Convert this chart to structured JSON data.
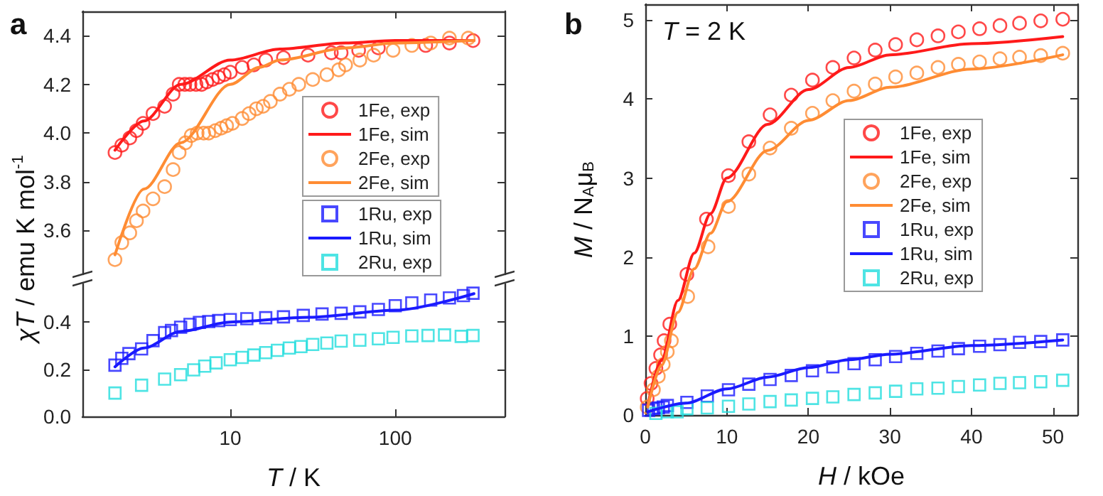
{
  "chart_data": [
    {
      "type": "scatter",
      "title": "a",
      "ylabel": "χT / emu K mol$^{-1}$",
      "log": "x",
      "xlim": [
        1.27,
        460
      ],
      "xticks": [
        10,
        100
      ],
      "ylim": [
        3.42,
        4.5
      ],
      "yticks": [
        3.6,
        3.8,
        {
          "value": 4,
          "label": "4.0"
        },
        4.2,
        4.4
      ],
      "tick_labels": "y",
      "grid": false,
      "legend": "right",
      "series": [
        {
          "name": "1Fe, exp",
          "marker": "circle",
          "color": "#ff1a1a",
          "x": [
            2,
            2.2,
            2.46,
            2.7,
            2.96,
            3.4,
            4,
            4.5,
            4.9,
            5.3,
            5.7,
            6.2,
            6.7,
            7.2,
            7.8,
            8.5,
            9.2,
            10,
            11.8,
            13.9,
            16.4,
            21,
            29.6,
            41,
            47,
            60,
            79,
            153,
            213,
            296
          ],
          "values": [
            3.92,
            3.95,
            3.98,
            4.01,
            4.04,
            4.08,
            4.11,
            4.16,
            4.2,
            4.2,
            4.2,
            4.2,
            4.2,
            4.21,
            4.22,
            4.23,
            4.24,
            4.25,
            4.27,
            4.28,
            4.3,
            4.31,
            4.32,
            4.33,
            4.33,
            4.34,
            4.35,
            4.36,
            4.37,
            4.38
          ]
        },
        {
          "name": "1Fe, sim",
          "type": "line",
          "marker": "none",
          "color": "#ff1a1a",
          "x": [
            2,
            3,
            5,
            10,
            20,
            50,
            100,
            300
          ],
          "values": [
            3.93,
            4.05,
            4.2,
            4.3,
            4.345,
            4.37,
            4.38,
            4.38
          ]
        },
        {
          "name": "2Fe, exp",
          "marker": "circle",
          "color": "#ff8c33",
          "x": [
            2,
            2.2,
            2.46,
            2.7,
            2.96,
            3.4,
            4,
            4.5,
            4.9,
            5.35,
            5.8,
            6.3,
            6.9,
            7.4,
            8.1,
            8.8,
            9.5,
            10.3,
            11.8,
            13,
            14.4,
            15.8,
            17.5,
            20,
            22.8,
            26,
            31.6,
            38.5,
            45.4,
            50,
            61,
            74,
            97,
            126,
            164,
            213,
            277
          ],
          "values": [
            3.48,
            3.55,
            3.59,
            3.64,
            3.68,
            3.73,
            3.78,
            3.85,
            3.92,
            3.96,
            3.99,
            4.0,
            4.0,
            4.0,
            4.01,
            4.02,
            4.03,
            4.04,
            4.06,
            4.08,
            4.1,
            4.11,
            4.13,
            4.16,
            4.18,
            4.2,
            4.22,
            4.24,
            4.26,
            4.28,
            4.3,
            4.32,
            4.34,
            4.36,
            4.37,
            4.39,
            4.39
          ]
        },
        {
          "name": "2Fe, sim",
          "type": "line",
          "marker": "none",
          "color": "#ff8c33",
          "x": [
            2,
            3,
            5,
            10,
            15,
            20,
            50,
            100,
            300
          ],
          "values": [
            3.5,
            3.77,
            3.96,
            4.2,
            4.27,
            4.3,
            4.35,
            4.37,
            4.38
          ]
        }
      ]
    },
    {
      "type": "scatter",
      "xlabel": "T / K",
      "log": "x",
      "xlim": [
        1.27,
        460
      ],
      "xticks": [
        10,
        100
      ],
      "ylim": [
        0,
        0.56
      ],
      "yticks": [
        {
          "value": 0,
          "label": "0.0"
        },
        0.2,
        0.4
      ],
      "grid": false,
      "legend": "right",
      "series": [
        {
          "name": "1Ru, exp",
          "marker": "square",
          "color": "#1a1aff",
          "x": [
            2,
            2.2,
            2.43,
            2.9,
            3.4,
            4,
            4.4,
            5,
            5.7,
            6.5,
            7.4,
            8.5,
            10,
            12.6,
            16.4,
            21,
            27.7,
            36,
            47,
            61,
            79,
            100,
            126,
            164,
            213,
            259,
            296
          ],
          "values": [
            0.217,
            0.246,
            0.266,
            0.286,
            0.321,
            0.355,
            0.364,
            0.378,
            0.39,
            0.398,
            0.402,
            0.406,
            0.41,
            0.414,
            0.418,
            0.422,
            0.428,
            0.434,
            0.437,
            0.443,
            0.453,
            0.469,
            0.481,
            0.493,
            0.502,
            0.512,
            0.522
          ]
        },
        {
          "name": "1Ru, sim",
          "type": "line",
          "marker": "none",
          "color": "#1a1aff",
          "x": [
            2,
            3,
            5,
            10,
            30,
            100,
            300
          ],
          "values": [
            0.21,
            0.29,
            0.36,
            0.4,
            0.42,
            0.45,
            0.52
          ]
        },
        {
          "name": "2Ru, exp",
          "marker": "square",
          "color": "#22dddd",
          "x": [
            2,
            2.9,
            4,
            5,
            6,
            7,
            8.2,
            10,
            11.8,
            13.9,
            16.4,
            19.3,
            22.8,
            26.8,
            31.6,
            38.5,
            47,
            61,
            79,
            97,
            126,
            158,
            199,
            251,
            296
          ],
          "values": [
            0.099,
            0.132,
            0.158,
            0.177,
            0.197,
            0.213,
            0.227,
            0.24,
            0.25,
            0.26,
            0.27,
            0.28,
            0.29,
            0.296,
            0.305,
            0.311,
            0.319,
            0.323,
            0.329,
            0.335,
            0.341,
            0.343,
            0.345,
            0.339,
            0.343
          ]
        }
      ]
    },
    {
      "type": "scatter",
      "title": "b",
      "xlabel": "H / kOe",
      "ylabel": "M / N$_{A}$μ$_{B}$",
      "annotations": [
        "T = 2 K"
      ],
      "xlim": [
        0,
        53
      ],
      "xticks": [
        0,
        10,
        20,
        30,
        40,
        50
      ],
      "ylim": [
        0,
        5.2
      ],
      "yticks": [
        0,
        1,
        2,
        3,
        4,
        5
      ],
      "grid": false,
      "legend": "right",
      "series": [
        {
          "name": "1Fe, exp",
          "marker": "circle",
          "color": "#ff1a1a",
          "x": [
            0.23,
            0.7,
            1.3,
            1.87,
            2.3,
            3,
            5.1,
            7.5,
            10.2,
            12.7,
            15.3,
            17.9,
            20.5,
            23,
            25.6,
            28.2,
            30.7,
            33.3,
            35.9,
            38.4,
            41,
            43.5,
            45.9,
            48.5,
            51.2
          ],
          "values": [
            0.21,
            0.4,
            0.59,
            0.76,
            0.94,
            1.15,
            1.78,
            2.48,
            3.03,
            3.46,
            3.8,
            4.05,
            4.24,
            4.4,
            4.52,
            4.62,
            4.69,
            4.75,
            4.8,
            4.85,
            4.89,
            4.93,
            4.96,
            4.99,
            5.01
          ]
        },
        {
          "name": "1Fe, sim",
          "type": "line",
          "marker": "none",
          "color": "#ff1a1a",
          "x": [
            0.3,
            2,
            4,
            6,
            8,
            10,
            15,
            20,
            25,
            30,
            40,
            51.2
          ],
          "values": [
            0.12,
            0.7,
            1.45,
            2.05,
            2.55,
            3.0,
            3.68,
            4.12,
            4.4,
            4.56,
            4.7,
            4.79
          ]
        },
        {
          "name": "2Fe, exp",
          "marker": "circle",
          "color": "#ff8c33",
          "x": [
            0.23,
            1,
            1.6,
            2.2,
            2.7,
            3.2,
            5.2,
            7.7,
            10.2,
            12.7,
            15.3,
            17.9,
            20.5,
            23,
            25.6,
            28.2,
            30.7,
            33.3,
            35.9,
            38.4,
            41,
            43.5,
            45.9,
            48.5,
            51.2
          ],
          "values": [
            0.1,
            0.32,
            0.49,
            0.64,
            0.8,
            0.94,
            1.5,
            2.13,
            2.64,
            3.05,
            3.38,
            3.63,
            3.82,
            3.98,
            4.1,
            4.19,
            4.28,
            4.33,
            4.4,
            4.44,
            4.47,
            4.51,
            4.53,
            4.55,
            4.58
          ]
        },
        {
          "name": "2Fe, sim",
          "type": "line",
          "marker": "none",
          "color": "#ff8c33",
          "x": [
            0.3,
            2,
            4,
            6,
            8,
            10,
            15,
            20,
            25,
            30,
            40,
            51.2
          ],
          "values": [
            0.1,
            0.63,
            1.3,
            1.85,
            2.3,
            2.7,
            3.35,
            3.73,
            3.98,
            4.15,
            4.38,
            4.56
          ]
        },
        {
          "name": "1Ru, exp",
          "marker": "square",
          "color": "#1a1aff",
          "x": [
            0.4,
            1,
            1.6,
            2.2,
            2.7,
            5.1,
            7.6,
            10.2,
            12.7,
            15.3,
            17.9,
            20.5,
            23,
            25.6,
            28.2,
            30.7,
            33.3,
            35.9,
            38.4,
            41,
            43.5,
            45.9,
            48.5,
            51.2
          ],
          "values": [
            0.06,
            0.08,
            0.09,
            0.1,
            0.12,
            0.16,
            0.24,
            0.32,
            0.39,
            0.45,
            0.5,
            0.56,
            0.61,
            0.65,
            0.7,
            0.74,
            0.78,
            0.81,
            0.84,
            0.87,
            0.89,
            0.92,
            0.93,
            0.95
          ]
        },
        {
          "name": "1Ru, sim",
          "type": "line",
          "marker": "none",
          "color": "#1a1aff",
          "x": [
            0.3,
            5,
            10,
            15,
            20,
            25,
            30,
            40,
            51.2
          ],
          "values": [
            0.04,
            0.15,
            0.33,
            0.48,
            0.6,
            0.7,
            0.77,
            0.88,
            0.95
          ]
        },
        {
          "name": "2Ru, exp",
          "marker": "square",
          "color": "#22dddd",
          "x": [
            1.3,
            2.7,
            3.9,
            5.1,
            7.6,
            10.2,
            12.7,
            15.3,
            17.9,
            20.5,
            23,
            25.6,
            28.2,
            30.7,
            33.3,
            35.9,
            38.4,
            41,
            43.5,
            45.9,
            48.5,
            51.2
          ],
          "values": [
            0.02,
            0.04,
            0.04,
            0.08,
            0.09,
            0.11,
            0.14,
            0.17,
            0.19,
            0.21,
            0.23,
            0.26,
            0.28,
            0.3,
            0.33,
            0.34,
            0.36,
            0.38,
            0.4,
            0.41,
            0.42,
            0.44
          ]
        }
      ]
    }
  ]
}
